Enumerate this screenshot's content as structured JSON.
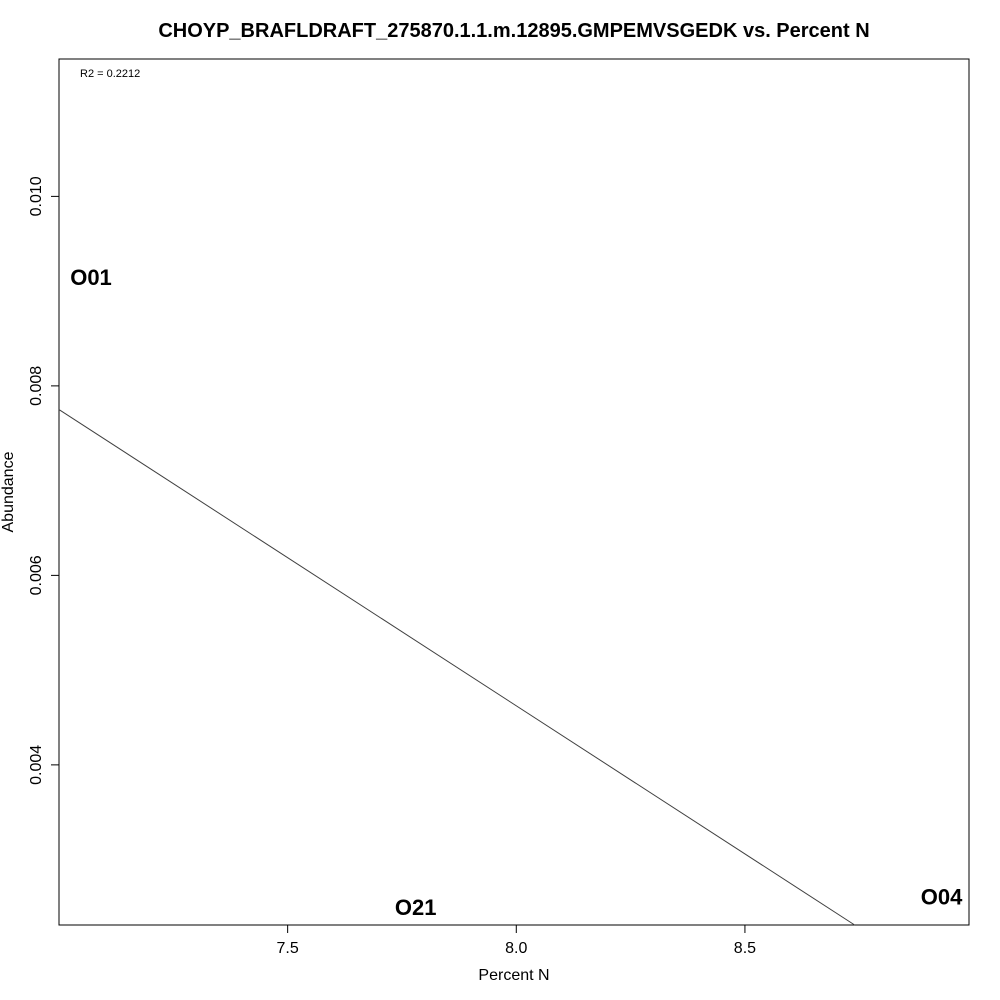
{
  "chart_data": {
    "type": "scatter",
    "title": "CHOYP_BRAFLDRAFT_275870.1.1.m.12895.GMPEMVSGEDK vs. Percent N",
    "xlabel": "Percent N",
    "ylabel": "Abundance",
    "xlim": [
      7.0,
      8.99
    ],
    "ylim": [
      0.00231,
      0.01145
    ],
    "x_ticks": [
      7.5,
      8.0,
      8.5
    ],
    "x_tick_labels": [
      "7.5",
      "8.0",
      "8.5"
    ],
    "y_ticks": [
      0.004,
      0.006,
      0.008,
      0.01
    ],
    "y_tick_labels": [
      "0.004",
      "0.006",
      "0.008",
      "0.010"
    ],
    "annotation": "R2 = 0.2212",
    "points": [
      {
        "label": "O01",
        "x": 7.07,
        "y": 0.00915
      },
      {
        "label": "O21",
        "x": 7.78,
        "y": 0.0025
      },
      {
        "label": "O04",
        "x": 8.93,
        "y": 0.00261
      }
    ],
    "fit_line": {
      "x": [
        7.0,
        8.74
      ],
      "y": [
        0.00775,
        0.00231
      ]
    },
    "grid": false,
    "legend": "none"
  }
}
